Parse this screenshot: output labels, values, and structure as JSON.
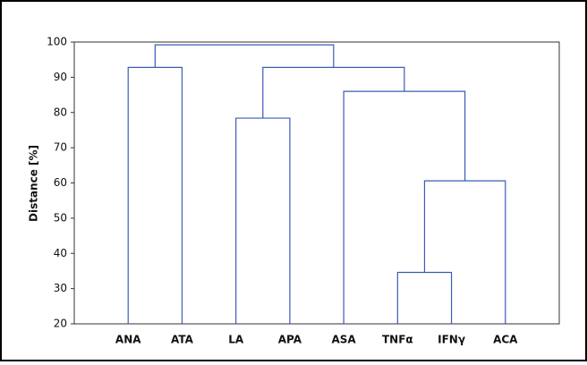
{
  "chart_data": {
    "type": "dendrogram",
    "y_label": "Distance [%]",
    "categories": [
      "ANA",
      "ATA",
      "LA",
      "APA",
      "ASA",
      "TNFα",
      "IFNγ",
      "ACA"
    ],
    "color": "#3a5cb4",
    "ylim": [
      20,
      100
    ],
    "yticks": [
      20,
      30,
      40,
      50,
      60,
      70,
      80,
      90,
      100
    ],
    "tree": {
      "height": 99.2,
      "children": [
        {
          "height": 92.8,
          "children": [
            0,
            1
          ]
        },
        {
          "height": 92.8,
          "children": [
            {
              "height": 78.4,
              "children": [
                2,
                3
              ]
            },
            {
              "height": 86,
              "children": [
                4,
                {
                  "height": 60.6,
                  "children": [
                    {
                      "height": 34.6,
                      "children": [
                        5,
                        6
                      ]
                    },
                    7
                  ]
                }
              ]
            }
          ]
        }
      ]
    }
  }
}
